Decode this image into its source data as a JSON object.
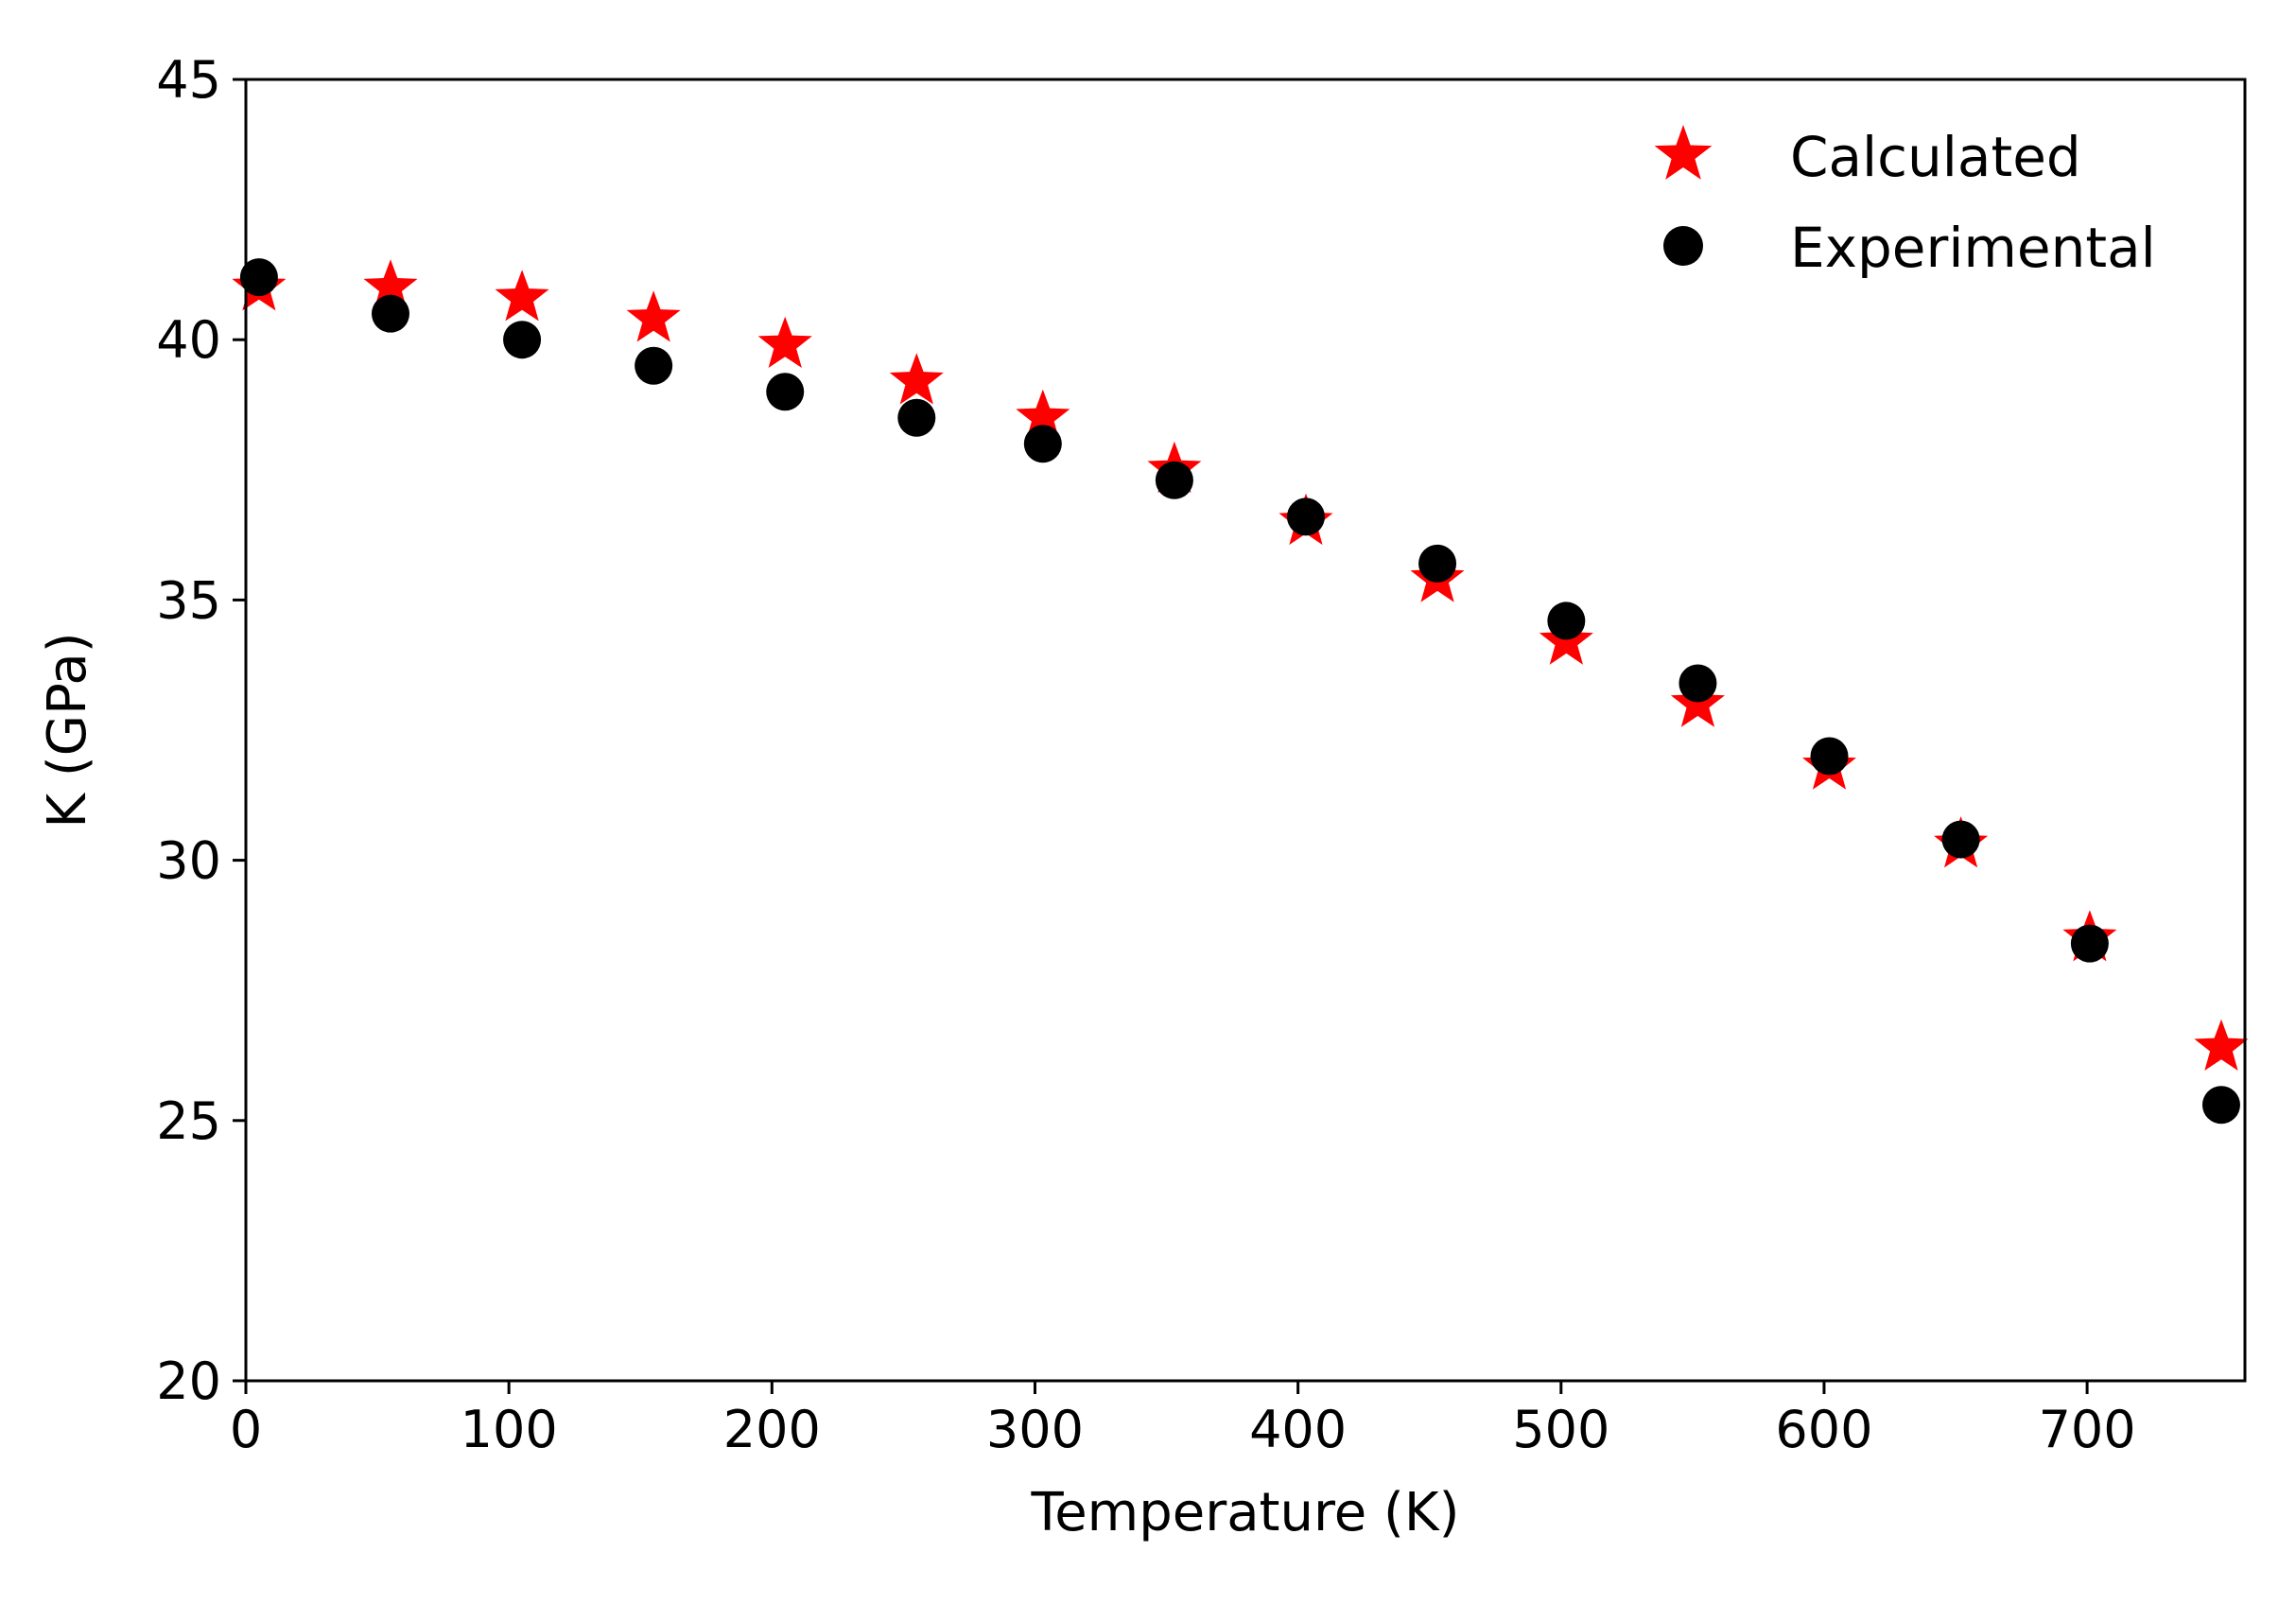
{
  "chart_data": {
    "type": "scatter",
    "title": "",
    "xlabel": "Temperature (K)",
    "ylabel": "K (GPa)",
    "xlim": [
      0,
      760
    ],
    "ylim": [
      20,
      45
    ],
    "xticks": [
      0,
      100,
      200,
      300,
      400,
      500,
      600,
      700
    ],
    "yticks": [
      20,
      25,
      30,
      35,
      40,
      45
    ],
    "xtick_labels": [
      "0",
      "100",
      "200",
      "300",
      "400",
      "500",
      "600",
      "700"
    ],
    "ytick_labels": [
      "20",
      "25",
      "30",
      "35",
      "40",
      "45"
    ],
    "grid": false,
    "legend_position": "top-right",
    "series": [
      {
        "name": "Calculated",
        "marker": "star",
        "color": "#ff0000",
        "x": [
          5,
          55,
          105,
          155,
          205,
          255,
          303,
          353,
          403,
          453,
          502,
          552,
          602,
          652,
          701,
          751
        ],
        "y": [
          41.0,
          41.0,
          40.8,
          40.4,
          39.9,
          39.2,
          38.5,
          37.5,
          36.5,
          35.4,
          34.2,
          33.0,
          31.8,
          30.3,
          28.5,
          26.4
        ]
      },
      {
        "name": "Experimental",
        "marker": "circle",
        "color": "#000000",
        "x": [
          5,
          55,
          105,
          155,
          205,
          255,
          303,
          353,
          403,
          453,
          502,
          552,
          602,
          652,
          701,
          751
        ],
        "y": [
          41.2,
          40.5,
          40.0,
          39.5,
          39.0,
          38.5,
          38.0,
          37.3,
          36.6,
          35.7,
          34.6,
          33.4,
          32.0,
          30.4,
          28.4,
          25.3
        ]
      }
    ]
  }
}
